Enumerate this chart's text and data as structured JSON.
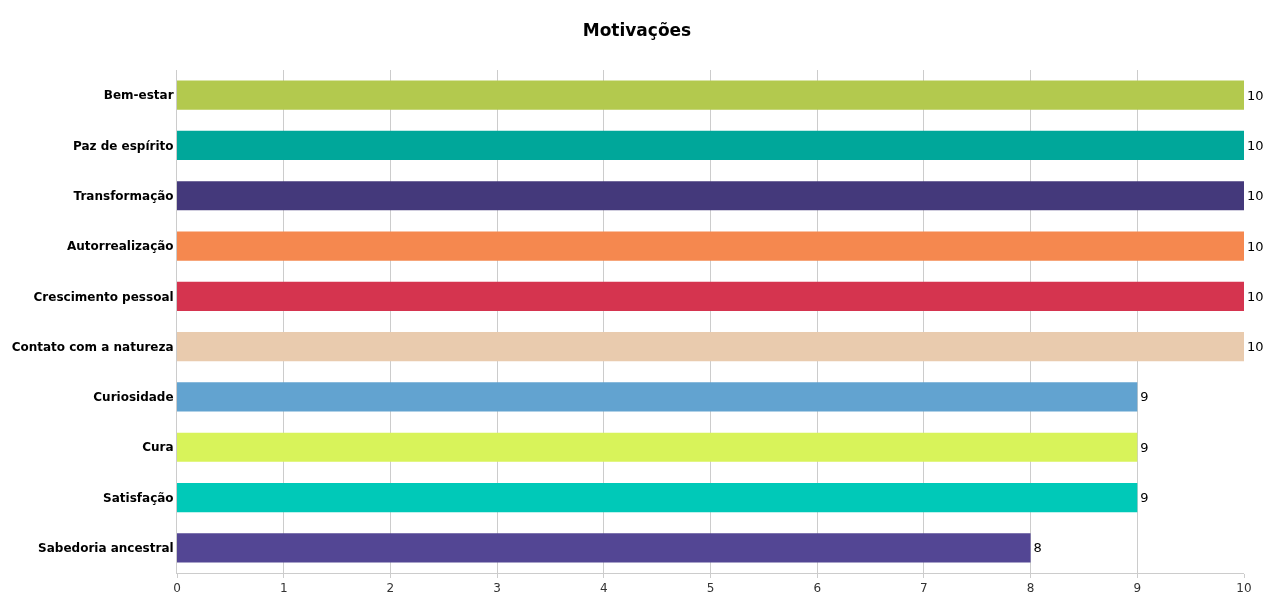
{
  "chart_data": {
    "type": "bar",
    "orientation": "horizontal",
    "title": "Motivações",
    "categories": [
      "Bem-estar",
      "Paz de espírito",
      "Transformação",
      "Autorrealização",
      "Crescimento pessoal",
      "Contato com a natureza",
      "Curiosidade",
      "Cura",
      "Satisfação",
      "Sabedoria ancestral"
    ],
    "values": [
      10,
      10,
      10,
      10,
      10,
      10,
      9,
      9,
      9,
      8
    ],
    "colors": [
      "#b3c94e",
      "#00a79a",
      "#44397b",
      "#f5884f",
      "#d5344f",
      "#e9cbae",
      "#62a3d0",
      "#d8f35a",
      "#00c9b8",
      "#534694"
    ],
    "xlim": [
      0,
      10
    ],
    "xticks": [
      0,
      1,
      2,
      3,
      4,
      5,
      6,
      7,
      8,
      9,
      10
    ],
    "grid": "x",
    "data_labels": true
  }
}
